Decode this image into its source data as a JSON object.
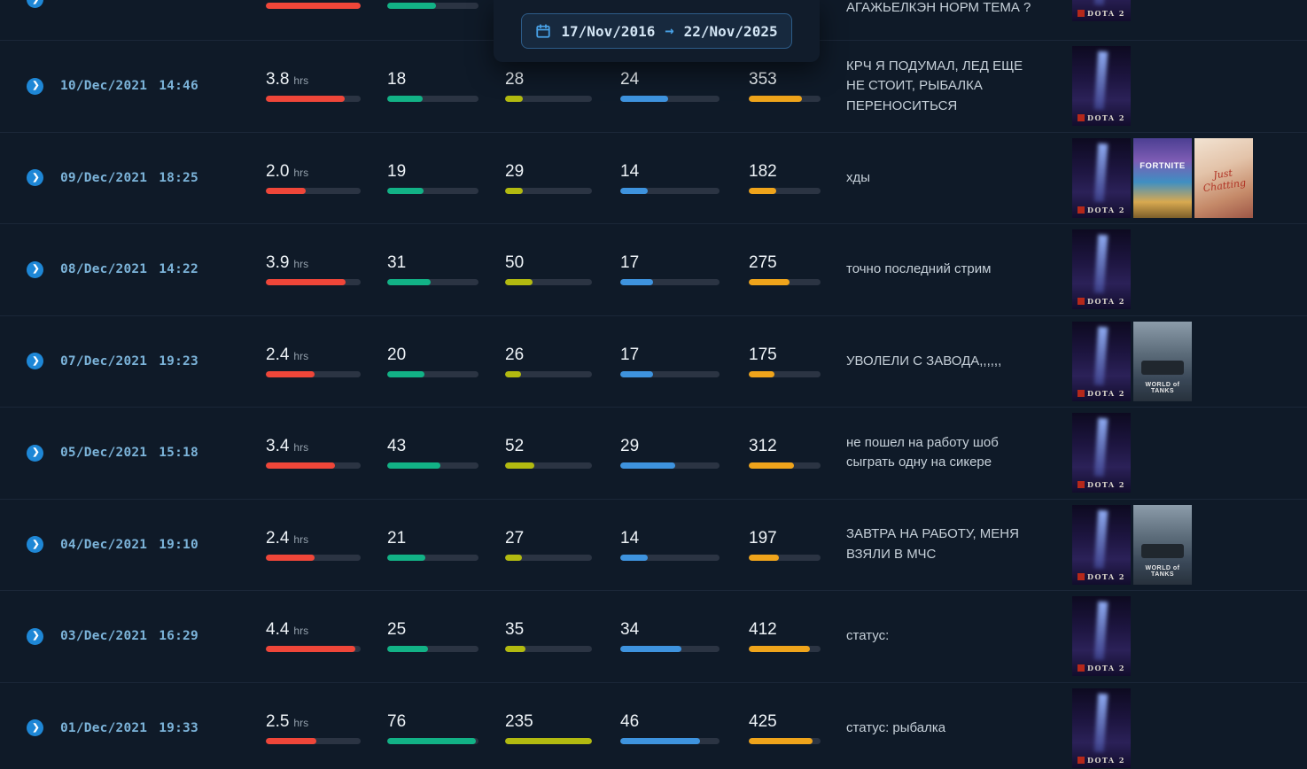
{
  "date_picker": {
    "start": "17/Nov/2016",
    "end": "22/Nov/2025",
    "separator": "→"
  },
  "icons": {
    "chevron": "❯"
  },
  "metric_colors": {
    "duration": "#ef4639",
    "avg_viewers": "#12b286",
    "max_viewers": "#b2ba10",
    "followers_gained": "#3e93de",
    "views": "#efa41b"
  },
  "games": {
    "dota2": {
      "label": "DOTA 2"
    },
    "fortnite": {
      "label": "FORTNITE"
    },
    "justchatting": {
      "label": "Just Chatting"
    },
    "worldoftanks": {
      "label": "WORLD of TANKS"
    }
  },
  "rows": [
    {
      "partial": true,
      "date": "",
      "time": "",
      "title": "АГАЖЬЕЛКЭН НОРМ ТЕМА ?",
      "games": [
        "dota2"
      ],
      "metrics": {
        "duration": {
          "value": "",
          "unit": "",
          "pct": 100
        },
        "avg_viewers": {
          "value": "",
          "pct": 53
        },
        "max_viewers": null,
        "followers_gained": null,
        "views": null
      }
    },
    {
      "date": "10/Dec/2021",
      "time": "14:46",
      "title": "КРЧ Я ПОДУМАЛ, ЛЕД ЕЩЕ НЕ СТОИТ, РЫБАЛКА ПЕРЕНОСИТЬСЯ",
      "games": [
        "dota2"
      ],
      "metrics": {
        "duration": {
          "value": "3.8",
          "unit": "hrs",
          "pct": 83
        },
        "avg_viewers": {
          "value": "18",
          "pct": 39
        },
        "max_viewers": {
          "value": "28",
          "pct": 20
        },
        "followers_gained": {
          "value": "24",
          "pct": 48
        },
        "views": {
          "value": "353",
          "pct": 74
        }
      }
    },
    {
      "date": "09/Dec/2021",
      "time": "18:25",
      "title": "хды",
      "games": [
        "dota2",
        "fortnite",
        "justchatting"
      ],
      "metrics": {
        "duration": {
          "value": "2.0",
          "unit": "hrs",
          "pct": 42
        },
        "avg_viewers": {
          "value": "19",
          "pct": 40
        },
        "max_viewers": {
          "value": "29",
          "pct": 20
        },
        "followers_gained": {
          "value": "14",
          "pct": 28
        },
        "views": {
          "value": "182",
          "pct": 38
        }
      }
    },
    {
      "date": "08/Dec/2021",
      "time": "14:22",
      "title": "точно последний стрим",
      "games": [
        "dota2"
      ],
      "metrics": {
        "duration": {
          "value": "3.9",
          "unit": "hrs",
          "pct": 84
        },
        "avg_viewers": {
          "value": "31",
          "pct": 48
        },
        "max_viewers": {
          "value": "50",
          "pct": 32
        },
        "followers_gained": {
          "value": "17",
          "pct": 33
        },
        "views": {
          "value": "275",
          "pct": 57
        }
      }
    },
    {
      "date": "07/Dec/2021",
      "time": "19:23",
      "title": "УВОЛЕЛИ С ЗАВОДА,,,,,,",
      "games": [
        "dota2",
        "worldoftanks"
      ],
      "metrics": {
        "duration": {
          "value": "2.4",
          "unit": "hrs",
          "pct": 51
        },
        "avg_viewers": {
          "value": "20",
          "pct": 41
        },
        "max_viewers": {
          "value": "26",
          "pct": 18
        },
        "followers_gained": {
          "value": "17",
          "pct": 33
        },
        "views": {
          "value": "175",
          "pct": 36
        }
      }
    },
    {
      "date": "05/Dec/2021",
      "time": "15:18",
      "title": "не пошел на работу шоб сыграть одну на сикере",
      "games": [
        "dota2"
      ],
      "metrics": {
        "duration": {
          "value": "3.4",
          "unit": "hrs",
          "pct": 73
        },
        "avg_viewers": {
          "value": "43",
          "pct": 58
        },
        "max_viewers": {
          "value": "52",
          "pct": 34
        },
        "followers_gained": {
          "value": "29",
          "pct": 55
        },
        "views": {
          "value": "312",
          "pct": 63
        }
      }
    },
    {
      "date": "04/Dec/2021",
      "time": "19:10",
      "title": "ЗАВТРА НА РАБОТУ, МЕНЯ ВЗЯЛИ В МЧС",
      "games": [
        "dota2",
        "worldoftanks"
      ],
      "metrics": {
        "duration": {
          "value": "2.4",
          "unit": "hrs",
          "pct": 51
        },
        "avg_viewers": {
          "value": "21",
          "pct": 42
        },
        "max_viewers": {
          "value": "27",
          "pct": 19
        },
        "followers_gained": {
          "value": "14",
          "pct": 28
        },
        "views": {
          "value": "197",
          "pct": 42
        }
      }
    },
    {
      "date": "03/Dec/2021",
      "time": "16:29",
      "title": "статус:",
      "games": [
        "dota2"
      ],
      "metrics": {
        "duration": {
          "value": "4.4",
          "unit": "hrs",
          "pct": 94
        },
        "avg_viewers": {
          "value": "25",
          "pct": 45
        },
        "max_viewers": {
          "value": "35",
          "pct": 23
        },
        "followers_gained": {
          "value": "34",
          "pct": 62
        },
        "views": {
          "value": "412",
          "pct": 85
        }
      }
    },
    {
      "date": "01/Dec/2021",
      "time": "19:33",
      "title": "статус: рыбалка",
      "games": [
        "dota2"
      ],
      "metrics": {
        "duration": {
          "value": "2.5",
          "unit": "hrs",
          "pct": 53
        },
        "avg_viewers": {
          "value": "76",
          "pct": 97
        },
        "max_viewers": {
          "value": "235",
          "pct": 100
        },
        "followers_gained": {
          "value": "46",
          "pct": 80
        },
        "views": {
          "value": "425",
          "pct": 89
        }
      }
    }
  ]
}
